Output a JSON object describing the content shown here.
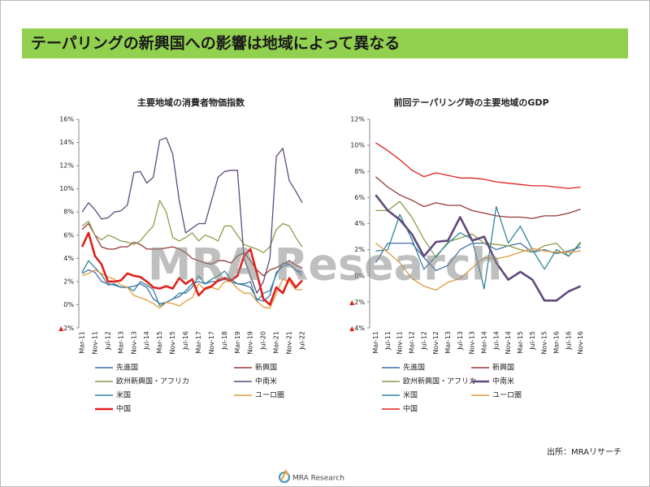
{
  "header": {
    "title": "テーパリングの新興国への影響は地域によって異なる"
  },
  "watermark": "MRA Research",
  "footer": {
    "source": "出所：MRAリサーチ",
    "logo": "MRA Research"
  },
  "chart_data": [
    {
      "type": "line",
      "title": "主要地域の消費者物価指数",
      "categories": [
        "Mar-11",
        null,
        "Nov-11",
        null,
        "Jul-12",
        null,
        "Mar-13",
        null,
        "Nov-13",
        null,
        "Jul-14",
        null,
        "Mar-15",
        null,
        "Nov-15",
        null,
        "Jul-16",
        null,
        "Mar-17",
        null,
        "Nov-17",
        null,
        "Jul-18",
        null,
        "Mar-19",
        null,
        "Nov-19",
        null,
        "Jul-20",
        null,
        "Mar-21",
        null,
        "Nov-21",
        null,
        "Jul-22"
      ],
      "ylim": [
        -2,
        16
      ],
      "yticks": [
        {
          "value": -2,
          "label": "▲2%"
        },
        {
          "value": 0,
          "label": "0%"
        },
        {
          "value": 2,
          "label": "2%"
        },
        {
          "value": 4,
          "label": "4%"
        },
        {
          "value": 6,
          "label": "6%"
        },
        {
          "value": 8,
          "label": "8%"
        },
        {
          "value": 10,
          "label": "10%"
        },
        {
          "value": 12,
          "label": "12%"
        },
        {
          "value": 14,
          "label": "14%"
        },
        {
          "value": 16,
          "label": "16%"
        }
      ],
      "grid": false,
      "legend": "bottom",
      "series": [
        {
          "name": "先進国",
          "color": "#3f6fa8",
          "values": [
            2.7,
            3.0,
            2.8,
            2.0,
            1.8,
            1.7,
            1.5,
            1.5,
            1.6,
            1.8,
            1.5,
            0.5,
            0.1,
            0.2,
            0.5,
            0.7,
            1.2,
            1.8,
            2.0,
            1.8,
            2.0,
            2.0,
            2.2,
            2.0,
            1.8,
            1.7,
            1.5,
            0.5,
            0.3,
            0.8,
            2.8,
            3.3,
            3.5,
            3.0,
            2.8
          ]
        },
        {
          "name": "新興国",
          "color": "#953735",
          "values": [
            6.5,
            7.0,
            6.0,
            5.0,
            4.8,
            4.8,
            5.0,
            5.0,
            5.4,
            5.2,
            4.8,
            4.8,
            4.8,
            4.9,
            5.0,
            4.8,
            4.5,
            4.0,
            3.8,
            3.6,
            3.5,
            3.8,
            3.8,
            3.6,
            4.2,
            4.5,
            3.8,
            3.0,
            2.5,
            3.0,
            3.2,
            3.5,
            3.8,
            3.4,
            3.2
          ]
        },
        {
          "name": "欧州新興国・アフリカ",
          "color": "#8c9c48",
          "values": [
            6.8,
            7.2,
            6.0,
            5.6,
            6.0,
            5.8,
            5.5,
            5.4,
            5.2,
            5.5,
            6.2,
            6.8,
            9.0,
            8.0,
            5.8,
            5.5,
            5.8,
            6.2,
            5.5,
            6.0,
            5.8,
            5.5,
            6.8,
            6.8,
            6.0,
            5.2,
            5.0,
            4.8,
            4.5,
            5.0,
            6.5,
            7.0,
            6.8,
            5.8,
            5.0
          ]
        },
        {
          "name": "中南米",
          "color": "#604a7b",
          "values": [
            8.0,
            8.8,
            8.2,
            7.4,
            7.5,
            8.0,
            8.1,
            8.6,
            11.4,
            11.5,
            10.5,
            11.0,
            14.2,
            14.4,
            13.0,
            9.0,
            6.2,
            6.6,
            7.0,
            7.0,
            9.0,
            11.0,
            11.5,
            11.6,
            11.6,
            4.0,
            2.5,
            1.0,
            2.0,
            4.0,
            12.8,
            13.5,
            10.7,
            9.8,
            8.8
          ]
        },
        {
          "name": "米国",
          "color": "#31859c",
          "values": [
            2.8,
            3.8,
            3.2,
            2.6,
            1.7,
            1.8,
            1.5,
            1.5,
            1.2,
            2.0,
            1.7,
            1.3,
            -0.1,
            0.2,
            0.5,
            1.0,
            1.0,
            1.5,
            2.5,
            1.8,
            2.2,
            2.5,
            2.9,
            2.2,
            1.8,
            1.8,
            2.0,
            0.3,
            1.0,
            1.2,
            2.6,
            3.6,
            3.5,
            3.0,
            2.5
          ]
        },
        {
          "name": "ユーロ圏",
          "color": "#e09a3e",
          "values": [
            2.5,
            2.7,
            3.0,
            2.7,
            2.4,
            2.2,
            1.7,
            1.5,
            0.8,
            0.6,
            0.4,
            0.1,
            -0.3,
            0.2,
            0.1,
            -0.1,
            0.3,
            0.6,
            1.8,
            1.3,
            1.5,
            1.3,
            2.0,
            2.0,
            1.4,
            1.0,
            1.0,
            0.3,
            -0.2,
            -0.3,
            1.0,
            2.2,
            2.0,
            1.3,
            1.3
          ]
        },
        {
          "name": "中国",
          "color": "#e0201c",
          "values": [
            5.0,
            6.2,
            4.2,
            3.5,
            2.0,
            2.0,
            2.1,
            2.7,
            2.5,
            2.4,
            2.0,
            1.5,
            1.4,
            1.6,
            1.4,
            2.3,
            1.8,
            2.2,
            0.8,
            1.4,
            1.6,
            2.1,
            2.3,
            2.1,
            2.5,
            4.2,
            4.8,
            2.7,
            0.5,
            0.0,
            1.5,
            1.0,
            2.3,
            1.5,
            2.1
          ]
        }
      ]
    },
    {
      "type": "line",
      "title": "前回テーパリング時の主要地域のGDP",
      "categories": [
        "Mar-11",
        "Jul-11",
        "Nov-11",
        "Mar-12",
        "Jul-12",
        "Nov-12",
        "Mar-13",
        "Jul-13",
        "Nov-13",
        "Mar-14",
        "Jul-14",
        "Nov-14",
        "Mar-15",
        "Jul-15",
        "Nov-15",
        "Mar-16",
        "Jul-16",
        "Nov-16"
      ],
      "ylim": [
        -4,
        12
      ],
      "yticks": [
        {
          "value": -4,
          "label": "▲4%"
        },
        {
          "value": -2,
          "label": "▲2%"
        },
        {
          "value": 0,
          "label": "0%"
        },
        {
          "value": 2,
          "label": "2%"
        },
        {
          "value": 4,
          "label": "4%"
        },
        {
          "value": 6,
          "label": "6%"
        },
        {
          "value": 8,
          "label": "8%"
        },
        {
          "value": 10,
          "label": "10%"
        },
        {
          "value": 12,
          "label": "12%"
        }
      ],
      "grid": false,
      "legend": "bottom",
      "series": [
        {
          "name": "先進国",
          "color": "#3f6fa8",
          "values": [
            1.0,
            2.5,
            2.5,
            2.5,
            1.4,
            0.4,
            0.8,
            2.0,
            2.5,
            2.5,
            2.0,
            2.3,
            2.5,
            1.8,
            2.0,
            1.7,
            1.9,
            2.2
          ]
        },
        {
          "name": "新興国",
          "color": "#953735",
          "values": [
            7.6,
            6.8,
            6.2,
            5.8,
            5.3,
            5.6,
            5.4,
            5.4,
            5.0,
            4.8,
            4.6,
            4.5,
            4.5,
            4.4,
            4.6,
            4.6,
            4.8,
            5.1
          ]
        },
        {
          "name": "欧州新興国・アフリカ",
          "color": "#8c9c48",
          "values": [
            5.0,
            5.0,
            5.7,
            4.5,
            2.8,
            1.4,
            2.6,
            2.9,
            3.2,
            2.5,
            2.4,
            2.3,
            2.0,
            1.8,
            2.3,
            2.5,
            1.5,
            2.6
          ]
        },
        {
          "name": "中南米",
          "color": "#604a7b",
          "values": [
            6.2,
            5.0,
            4.3,
            3.2,
            1.5,
            2.6,
            2.7,
            4.5,
            2.7,
            3.0,
            1.0,
            -0.3,
            0.3,
            -0.3,
            -1.9,
            -1.9,
            -1.2,
            -0.8
          ]
        },
        {
          "name": "米国",
          "color": "#31859c",
          "values": [
            1.9,
            2.0,
            4.7,
            2.8,
            0.5,
            1.5,
            2.5,
            3.3,
            2.8,
            -1.0,
            5.3,
            2.5,
            3.8,
            2.0,
            0.5,
            2.0,
            1.5,
            2.5
          ]
        },
        {
          "name": "ユーロ圏",
          "color": "#e09a3e",
          "values": [
            2.5,
            1.8,
            1.0,
            -0.2,
            -0.8,
            -1.1,
            -0.5,
            -0.2,
            0.6,
            1.4,
            1.3,
            1.5,
            1.8,
            2.1,
            1.9,
            1.8,
            1.8,
            1.9
          ]
        },
        {
          "name": "中国",
          "color": "#e0201c",
          "values": [
            10.2,
            9.6,
            8.9,
            8.1,
            7.6,
            7.9,
            7.7,
            7.5,
            7.5,
            7.4,
            7.2,
            7.1,
            7.0,
            6.9,
            6.9,
            6.8,
            6.7,
            6.8
          ]
        }
      ]
    }
  ]
}
